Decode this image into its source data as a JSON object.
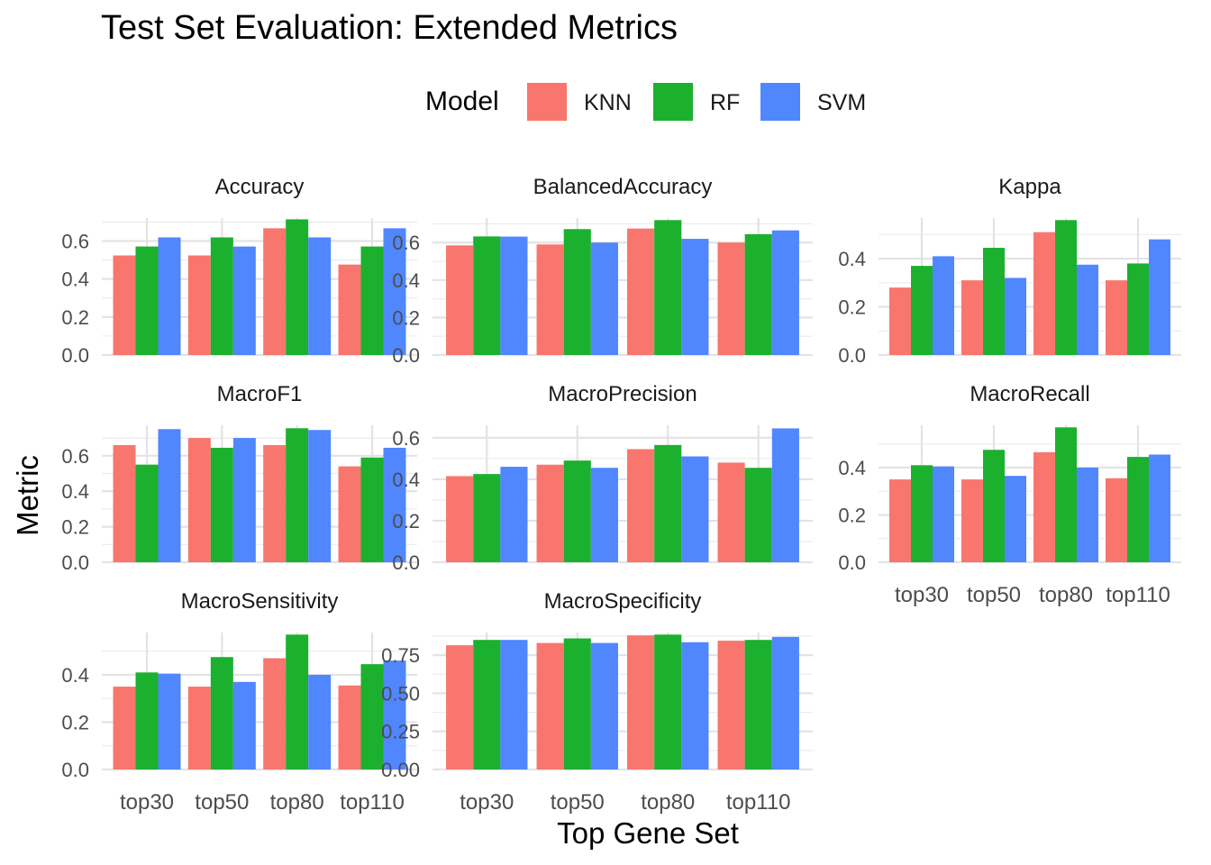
{
  "title": "Test Set Evaluation: Extended Metrics",
  "legend": {
    "title": "Model",
    "entries": [
      {
        "name": "KNN",
        "color": "#F8766D"
      },
      {
        "name": "RF",
        "color": "#1CB02F"
      },
      {
        "name": "SVM",
        "color": "#5087FF"
      }
    ]
  },
  "chart_data": {
    "type": "bar",
    "layout": "faceted grouped bar chart (3 columns)",
    "xlabel": "Top Gene Set",
    "ylabel": "Metric",
    "categories": [
      "top30",
      "top50",
      "top80",
      "top110"
    ],
    "series_names": [
      "KNN",
      "RF",
      "SVM"
    ],
    "grid": true,
    "legend_position": "top",
    "facets": [
      {
        "name": "Accuracy",
        "yticks": [
          0.0,
          0.2,
          0.4,
          0.6
        ],
        "ylim": [
          0,
          0.71
        ],
        "tick_decimals": 1,
        "series": [
          {
            "name": "KNN",
            "values": [
              0.524,
              0.524,
              0.667,
              0.476
            ]
          },
          {
            "name": "RF",
            "values": [
              0.571,
              0.619,
              0.714,
              0.571
            ]
          },
          {
            "name": "SVM",
            "values": [
              0.619,
              0.571,
              0.619,
              0.667
            ]
          }
        ]
      },
      {
        "name": "BalancedAccuracy",
        "yticks": [
          0.0,
          0.2,
          0.4,
          0.6
        ],
        "ylim": [
          0,
          0.72
        ],
        "tick_decimals": 1,
        "series": [
          {
            "name": "KNN",
            "values": [
              0.585,
              0.59,
              0.675,
              0.6
            ]
          },
          {
            "name": "RF",
            "values": [
              0.633,
              0.672,
              0.72,
              0.645
            ]
          },
          {
            "name": "SVM",
            "values": [
              0.632,
              0.6,
              0.62,
              0.665
            ]
          }
        ]
      },
      {
        "name": "Kappa",
        "yticks": [
          0.0,
          0.2,
          0.4
        ],
        "ylim": [
          0,
          0.56
        ],
        "tick_decimals": 1,
        "series": [
          {
            "name": "KNN",
            "values": [
              0.28,
              0.31,
              0.51,
              0.31
            ]
          },
          {
            "name": "RF",
            "values": [
              0.37,
              0.445,
              0.56,
              0.38
            ]
          },
          {
            "name": "SVM",
            "values": [
              0.41,
              0.32,
              0.375,
              0.48
            ]
          }
        ]
      },
      {
        "name": "MacroF1",
        "yticks": [
          0.0,
          0.2,
          0.4,
          0.6
        ],
        "ylim": [
          0,
          0.76
        ],
        "tick_decimals": 1,
        "series": [
          {
            "name": "KNN",
            "values": [
              0.66,
              0.7,
              0.66,
              0.54
            ]
          },
          {
            "name": "RF",
            "values": [
              0.55,
              0.645,
              0.755,
              0.59
            ]
          },
          {
            "name": "SVM",
            "values": [
              0.75,
              0.7,
              0.745,
              0.645
            ]
          }
        ]
      },
      {
        "name": "MacroPrecision",
        "yticks": [
          0.0,
          0.2,
          0.4,
          0.6
        ],
        "ylim": [
          0,
          0.65
        ],
        "tick_decimals": 1,
        "series": [
          {
            "name": "KNN",
            "values": [
              0.415,
              0.47,
              0.545,
              0.48
            ]
          },
          {
            "name": "RF",
            "values": [
              0.425,
              0.49,
              0.565,
              0.455
            ]
          },
          {
            "name": "SVM",
            "values": [
              0.46,
              0.455,
              0.51,
              0.645
            ]
          }
        ]
      },
      {
        "name": "MacroRecall",
        "yticks": [
          0.0,
          0.2,
          0.4
        ],
        "ylim": [
          0,
          0.57
        ],
        "tick_decimals": 1,
        "series": [
          {
            "name": "KNN",
            "values": [
              0.35,
              0.35,
              0.465,
              0.355
            ]
          },
          {
            "name": "RF",
            "values": [
              0.41,
              0.475,
              0.57,
              0.445
            ]
          },
          {
            "name": "SVM",
            "values": [
              0.405,
              0.365,
              0.4,
              0.455
            ]
          }
        ]
      },
      {
        "name": "MacroSensitivity",
        "yticks": [
          0.0,
          0.2,
          0.4
        ],
        "ylim": [
          0,
          0.57
        ],
        "tick_decimals": 1,
        "series": [
          {
            "name": "KNN",
            "values": [
              0.35,
              0.35,
              0.47,
              0.355
            ]
          },
          {
            "name": "RF",
            "values": [
              0.41,
              0.475,
              0.57,
              0.445
            ]
          },
          {
            "name": "SVM",
            "values": [
              0.405,
              0.37,
              0.4,
              0.46
            ]
          }
        ]
      },
      {
        "name": "MacroSpecificity",
        "yticks": [
          0.0,
          0.25,
          0.5,
          0.75
        ],
        "ylim": [
          0,
          0.885
        ],
        "tick_decimals": 2,
        "series": [
          {
            "name": "KNN",
            "values": [
              0.815,
              0.83,
              0.88,
              0.845
            ]
          },
          {
            "name": "RF",
            "values": [
              0.85,
              0.86,
              0.885,
              0.85
            ]
          },
          {
            "name": "SVM",
            "values": [
              0.85,
              0.83,
              0.835,
              0.87
            ]
          }
        ]
      }
    ]
  }
}
